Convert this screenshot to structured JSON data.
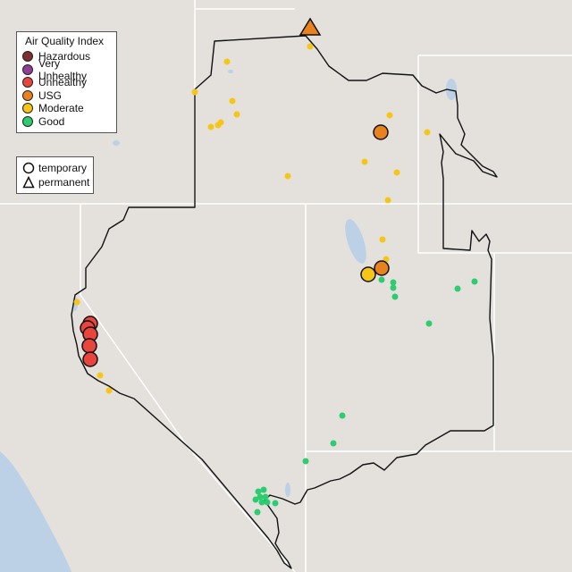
{
  "legend": {
    "title": "Air Quality Index",
    "categories": [
      {
        "label": "Hazardous",
        "color": "#7e2f2f"
      },
      {
        "label": "Very Unhealthy",
        "color": "#8f3f97"
      },
      {
        "label": "Unhealthy",
        "color": "#e8453c"
      },
      {
        "label": "USG",
        "color": "#e8821e"
      },
      {
        "label": "Moderate",
        "color": "#f5c518"
      },
      {
        "label": "Good",
        "color": "#2ecc71"
      }
    ]
  },
  "monitor_types": [
    {
      "label": "temporary",
      "symbol": "circle-icon"
    },
    {
      "label": "permanent",
      "symbol": "triangle-icon"
    }
  ],
  "colors": {
    "land": "#e4e1dd",
    "water": "#bcd0e6",
    "border": "#111111",
    "state_line": "#ffffff"
  }
}
